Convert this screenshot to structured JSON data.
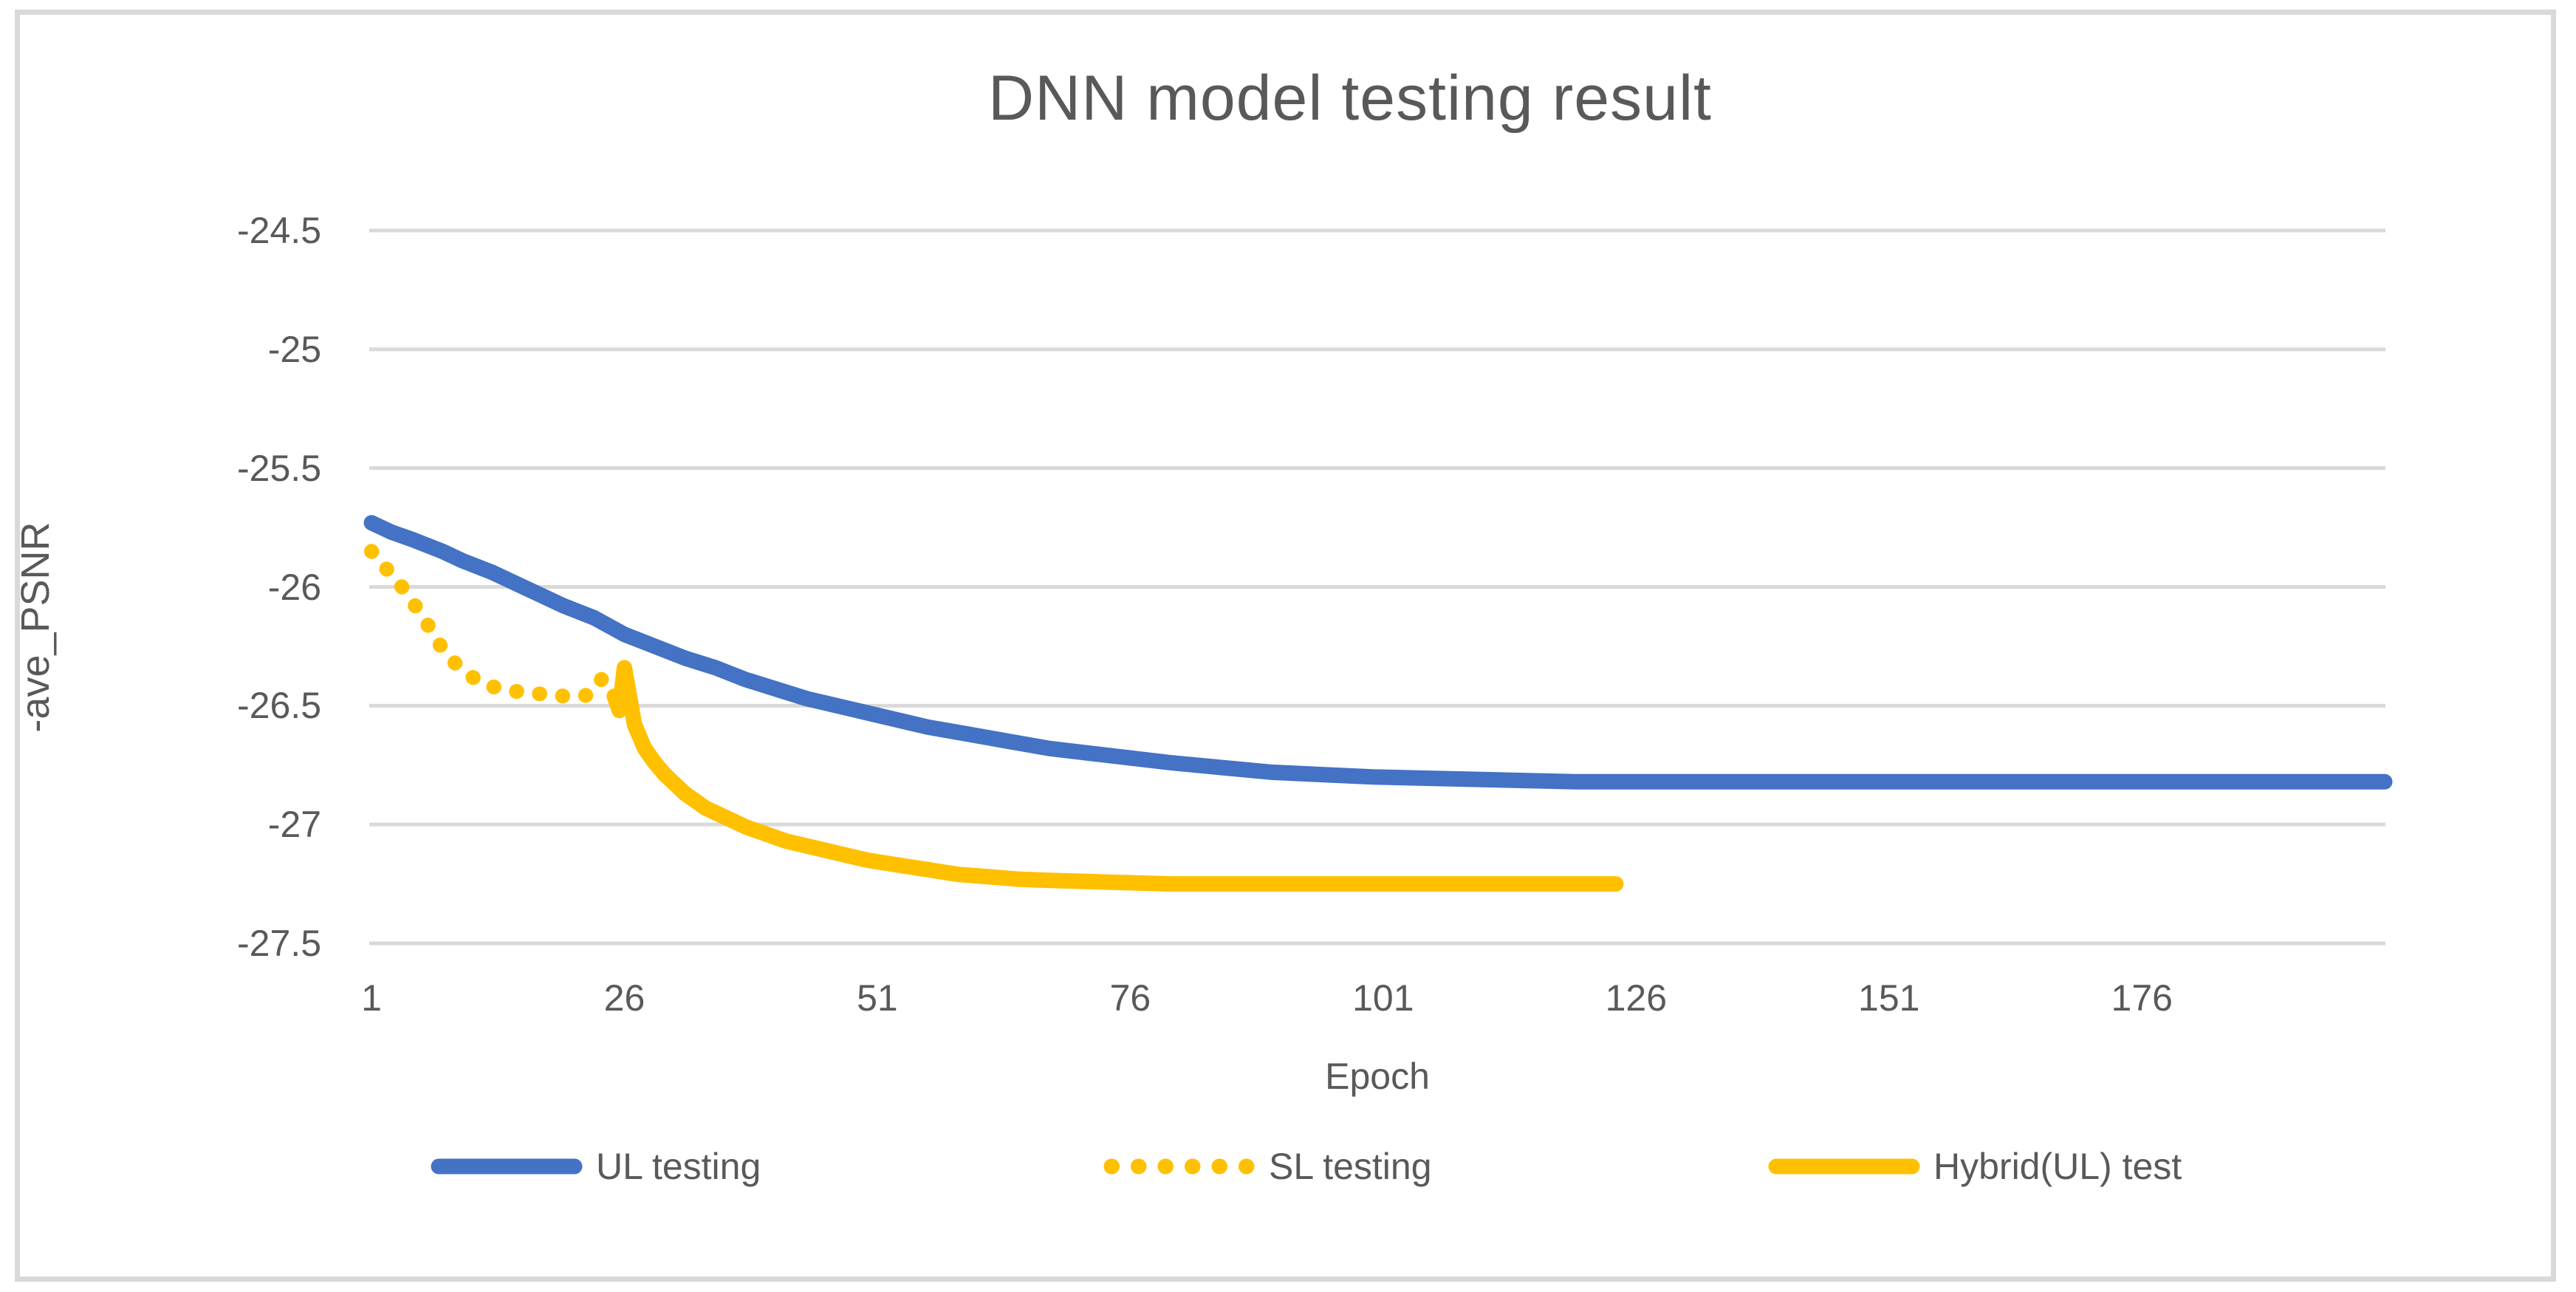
{
  "title": "DNN model testing result",
  "axes": {
    "x_label": "Epoch",
    "y_label": "-ave_PSNR",
    "x_ticks": [
      "1",
      "26",
      "51",
      "76",
      "101",
      "126",
      "151",
      "176"
    ],
    "y_ticks": [
      "-24.5",
      "-25",
      "-25.5",
      "-26",
      "-26.5",
      "-27",
      "-27.5"
    ]
  },
  "colors": {
    "series_blue": "#4472C4",
    "series_gold": "#FFC000",
    "gridline": "#D9D9D9",
    "frame_border": "#D9D9D9",
    "text": "#595959",
    "background": "#FFFFFF"
  },
  "chart_data": {
    "type": "line",
    "title": "DNN model testing result",
    "xlabel": "Epoch",
    "ylabel": "-ave_PSNR",
    "xlim": [
      1,
      200
    ],
    "ylim": [
      -27.5,
      -24.5
    ],
    "x_tick_values": [
      1,
      26,
      51,
      76,
      101,
      126,
      151,
      176
    ],
    "y_tick_values": [
      -24.5,
      -25,
      -25.5,
      -26,
      -26.5,
      -27,
      -27.5
    ],
    "grid": true,
    "legend_position": "bottom",
    "series": [
      {
        "name": "UL testing",
        "color": "#4472C4",
        "style": "solid",
        "points": [
          [
            1,
            -25.73
          ],
          [
            3,
            -25.77
          ],
          [
            5,
            -25.8
          ],
          [
            8,
            -25.85
          ],
          [
            10,
            -25.89
          ],
          [
            13,
            -25.94
          ],
          [
            15,
            -25.98
          ],
          [
            18,
            -26.04
          ],
          [
            20,
            -26.08
          ],
          [
            23,
            -26.13
          ],
          [
            26,
            -26.2
          ],
          [
            29,
            -26.25
          ],
          [
            32,
            -26.3
          ],
          [
            35,
            -26.34
          ],
          [
            38,
            -26.39
          ],
          [
            41,
            -26.43
          ],
          [
            44,
            -26.47
          ],
          [
            47,
            -26.5
          ],
          [
            50,
            -26.53
          ],
          [
            53,
            -26.56
          ],
          [
            56,
            -26.59
          ],
          [
            60,
            -26.62
          ],
          [
            64,
            -26.65
          ],
          [
            68,
            -26.68
          ],
          [
            72,
            -26.7
          ],
          [
            76,
            -26.72
          ],
          [
            80,
            -26.74
          ],
          [
            85,
            -26.76
          ],
          [
            90,
            -26.78
          ],
          [
            95,
            -26.79
          ],
          [
            100,
            -26.8
          ],
          [
            110,
            -26.81
          ],
          [
            120,
            -26.82
          ],
          [
            140,
            -26.82
          ],
          [
            160,
            -26.82
          ],
          [
            180,
            -26.82
          ],
          [
            200,
            -26.82
          ]
        ]
      },
      {
        "name": "SL testing",
        "color": "#FFC000",
        "style": "dotted",
        "points": [
          [
            1,
            -25.85
          ],
          [
            2,
            -25.9
          ],
          [
            3,
            -25.95
          ],
          [
            4,
            -26.0
          ],
          [
            5,
            -26.06
          ],
          [
            6,
            -26.12
          ],
          [
            7,
            -26.19
          ],
          [
            8,
            -26.26
          ],
          [
            9,
            -26.31
          ],
          [
            10,
            -26.35
          ],
          [
            11,
            -26.38
          ],
          [
            12,
            -26.41
          ],
          [
            13,
            -26.42
          ],
          [
            14,
            -26.43
          ],
          [
            15,
            -26.44
          ],
          [
            16,
            -26.44
          ],
          [
            17,
            -26.45
          ],
          [
            18,
            -26.45
          ],
          [
            19,
            -26.45
          ],
          [
            20,
            -26.46
          ],
          [
            21,
            -26.46
          ],
          [
            22,
            -26.46
          ],
          [
            23,
            -26.44
          ],
          [
            24,
            -26.37
          ]
        ]
      },
      {
        "name": "Hybrid(UL) test",
        "color": "#FFC000",
        "style": "solid",
        "points": [
          [
            25,
            -26.46
          ],
          [
            25.5,
            -26.52
          ],
          [
            26,
            -26.34
          ],
          [
            27,
            -26.58
          ],
          [
            28,
            -26.68
          ],
          [
            29,
            -26.74
          ],
          [
            30,
            -26.79
          ],
          [
            31,
            -26.83
          ],
          [
            32,
            -26.87
          ],
          [
            33,
            -26.9
          ],
          [
            34,
            -26.93
          ],
          [
            35,
            -26.95
          ],
          [
            36,
            -26.97
          ],
          [
            38,
            -27.01
          ],
          [
            40,
            -27.04
          ],
          [
            42,
            -27.07
          ],
          [
            44,
            -27.09
          ],
          [
            46,
            -27.11
          ],
          [
            48,
            -27.13
          ],
          [
            50,
            -27.15
          ],
          [
            53,
            -27.17
          ],
          [
            56,
            -27.19
          ],
          [
            59,
            -27.21
          ],
          [
            62,
            -27.22
          ],
          [
            65,
            -27.23
          ],
          [
            68,
            -27.235
          ],
          [
            72,
            -27.24
          ],
          [
            76,
            -27.245
          ],
          [
            80,
            -27.25
          ],
          [
            85,
            -27.25
          ],
          [
            90,
            -27.25
          ],
          [
            95,
            -27.25
          ],
          [
            100,
            -27.25
          ],
          [
            105,
            -27.25
          ],
          [
            110,
            -27.25
          ],
          [
            115,
            -27.25
          ],
          [
            120,
            -27.25
          ],
          [
            124,
            -27.25
          ]
        ]
      }
    ]
  }
}
